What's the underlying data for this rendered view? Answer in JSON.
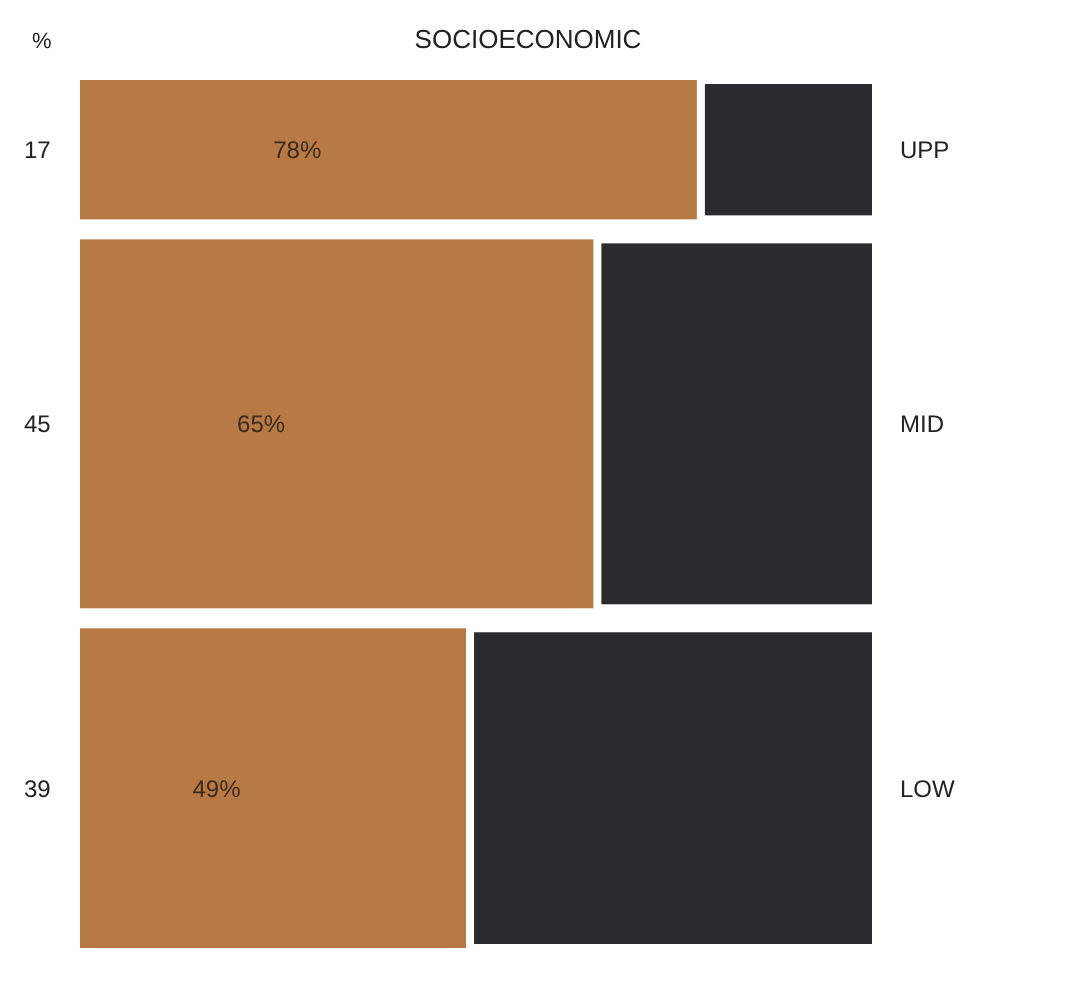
{
  "chart_data": {
    "type": "bar",
    "title": "SOCIOECONOMIC",
    "ylabel": "%",
    "orientation": "horizontal",
    "stacked": true,
    "categories": [
      "UPP",
      "MID",
      "LOW"
    ],
    "series": [
      {
        "color": "#b87a45",
        "values": [
          78,
          65,
          49
        ],
        "value_labels": [
          "78%",
          "65%",
          "49%"
        ]
      },
      {
        "color": "#2b2a2e",
        "values": [
          22,
          35,
          51
        ]
      }
    ],
    "annotations": [
      "17",
      "45",
      "39"
    ]
  }
}
